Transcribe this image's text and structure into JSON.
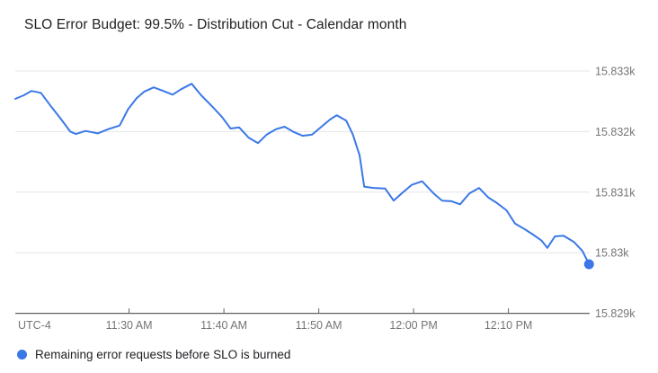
{
  "chart": {
    "title": "SLO Error Budget: 99.5% - Distribution Cut - Calendar month",
    "legend_label": "Remaining error requests before SLO is burned",
    "timezone_label": "UTC-4"
  },
  "colors": {
    "line": "#3b78e7",
    "grid": "#e6e6e6",
    "axis": "#616161",
    "axis_text": "#757575",
    "title_text": "#212121",
    "legend_text": "#202124",
    "background": "#ffffff"
  },
  "chart_data": {
    "type": "line",
    "title": "SLO Error Budget: 99.5% - Distribution Cut - Calendar month",
    "xlabel": "",
    "ylabel": "",
    "timezone_label": "UTC-4",
    "grid": true,
    "legend_position": "bottom-left",
    "end_dot": true,
    "x_unit": "minutes after 11:00 AM (UTC-4)",
    "x_range": [
      18,
      78.5
    ],
    "y_range": [
      15829,
      15833.3
    ],
    "x_ticks": [
      {
        "t": 30,
        "label": "11:30 AM"
      },
      {
        "t": 40,
        "label": "11:40 AM"
      },
      {
        "t": 50,
        "label": "11:50 AM"
      },
      {
        "t": 60,
        "label": "12:00 PM"
      },
      {
        "t": 70,
        "label": "12:10 PM"
      }
    ],
    "y_ticks": [
      {
        "v": 15833,
        "label": "15.833k"
      },
      {
        "v": 15832,
        "label": "15.832k"
      },
      {
        "v": 15831,
        "label": "15.831k"
      },
      {
        "v": 15830,
        "label": "15.83k"
      },
      {
        "v": 15829,
        "label": "15.829k"
      }
    ],
    "series": [
      {
        "name": "Remaining error requests before SLO is burned",
        "color": "#3b78e7",
        "points": [
          [
            18.0,
            15832.54
          ],
          [
            18.9,
            15832.6
          ],
          [
            19.7,
            15832.67
          ],
          [
            20.7,
            15832.64
          ],
          [
            21.8,
            15832.41
          ],
          [
            22.7,
            15832.23
          ],
          [
            23.8,
            15832.0
          ],
          [
            24.4,
            15831.96
          ],
          [
            25.4,
            15832.01
          ],
          [
            26.7,
            15831.97
          ],
          [
            27.8,
            15832.04
          ],
          [
            29.0,
            15832.1
          ],
          [
            29.9,
            15832.37
          ],
          [
            30.8,
            15832.55
          ],
          [
            31.6,
            15832.66
          ],
          [
            32.6,
            15832.73
          ],
          [
            33.6,
            15832.67
          ],
          [
            34.6,
            15832.61
          ],
          [
            35.5,
            15832.7
          ],
          [
            36.6,
            15832.79
          ],
          [
            37.6,
            15832.6
          ],
          [
            38.8,
            15832.41
          ],
          [
            39.8,
            15832.24
          ],
          [
            40.7,
            15832.05
          ],
          [
            41.6,
            15832.07
          ],
          [
            42.6,
            15831.9
          ],
          [
            43.6,
            15831.81
          ],
          [
            44.5,
            15831.95
          ],
          [
            45.5,
            15832.04
          ],
          [
            46.4,
            15832.08
          ],
          [
            47.4,
            15831.99
          ],
          [
            48.3,
            15831.93
          ],
          [
            49.3,
            15831.95
          ],
          [
            50.2,
            15832.07
          ],
          [
            51.2,
            15832.2
          ],
          [
            51.9,
            15832.27
          ],
          [
            52.9,
            15832.18
          ],
          [
            53.6,
            15831.95
          ],
          [
            54.3,
            15831.61
          ],
          [
            54.8,
            15831.09
          ],
          [
            55.8,
            15831.07
          ],
          [
            57.0,
            15831.06
          ],
          [
            57.9,
            15830.86
          ],
          [
            58.9,
            15831.0
          ],
          [
            59.8,
            15831.12
          ],
          [
            60.9,
            15831.18
          ],
          [
            62.1,
            15830.98
          ],
          [
            63.0,
            15830.86
          ],
          [
            64.0,
            15830.85
          ],
          [
            64.9,
            15830.8
          ],
          [
            65.9,
            15830.98
          ],
          [
            66.9,
            15831.07
          ],
          [
            67.9,
            15830.91
          ],
          [
            68.8,
            15830.82
          ],
          [
            69.8,
            15830.7
          ],
          [
            70.7,
            15830.48
          ],
          [
            71.7,
            15830.39
          ],
          [
            72.6,
            15830.3
          ],
          [
            73.5,
            15830.2
          ],
          [
            74.1,
            15830.08
          ],
          [
            74.9,
            15830.27
          ],
          [
            75.8,
            15830.28
          ],
          [
            76.9,
            15830.18
          ],
          [
            77.8,
            15830.03
          ],
          [
            78.5,
            15829.81
          ]
        ]
      }
    ]
  }
}
